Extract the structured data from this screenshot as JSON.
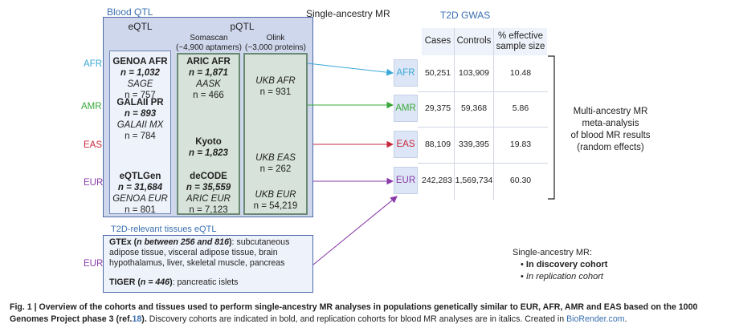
{
  "blood_qtl": {
    "title": "Blood QTL",
    "eqtl_header": "eQTL",
    "pqtl_header": "pQTL",
    "somascan": {
      "name": "Somascan",
      "detail": "(~4,900 aptamers)"
    },
    "olink": {
      "name": "Olink",
      "detail": "(~3,000 proteins)"
    }
  },
  "single_ancestry_label": "Single-ancestry MR",
  "ancestries": {
    "afr": "AFR",
    "amr": "AMR",
    "eas": "EAS",
    "eur": "EUR",
    "eur_tissue": "EUR"
  },
  "eqtl": {
    "afr": {
      "disc_name": "GENOA AFR",
      "disc_n": "n = 1,032",
      "rep_name": "SAGE",
      "rep_n": "n = 757"
    },
    "amr": {
      "disc_name": "GALAII PR",
      "disc_n": "n = 893",
      "rep_name": "GALAII MX",
      "rep_n": "n = 784"
    },
    "eur": {
      "disc_name": "eQTLGen",
      "disc_n": "n = 31,684",
      "rep_name": "GENOA EUR",
      "rep_n": "n = 801"
    }
  },
  "somascan_cohorts": {
    "afr": {
      "disc_name": "ARIC AFR",
      "disc_n": "n = 1,871",
      "rep_name": "AASK",
      "rep_n": "n = 466"
    },
    "eas": {
      "disc_name": "Kyoto",
      "disc_n": "n = 1,823"
    },
    "eur": {
      "disc_name": "deCODE",
      "disc_n": "n = 35,559",
      "rep_name": "ARIC EUR",
      "rep_n": "n = 7,123"
    }
  },
  "olink_cohorts": {
    "afr": {
      "rep_name": "UKB AFR",
      "rep_n": "n = 931"
    },
    "eas": {
      "rep_name": "UKB EAS",
      "rep_n": "n = 262"
    },
    "eur": {
      "rep_name": "UKB EUR",
      "rep_n": "n = 54,219"
    }
  },
  "tissue_eqtl": {
    "title": "T2D-relevant tissues eQTL",
    "gtex_name": "GTEx",
    "gtex_n": "n between 256 and 816",
    "gtex_tissues": "subcutaneous adipose tissue, visceral adipose tissue, brain hypothalamus, liver, skeletal muscle, pancreas",
    "tiger_name": "TIGER",
    "tiger_n": "n = 446",
    "tiger_tissue": "pancreatic islets"
  },
  "t2d_gwas": {
    "title": "T2D GWAS",
    "columns": [
      "Cases",
      "Controls",
      "% effective sample size"
    ],
    "rows": [
      {
        "ancestry": "AFR",
        "cases": "50,251",
        "controls": "103,909",
        "pct": "10.48"
      },
      {
        "ancestry": "AMR",
        "cases": "29,375",
        "controls": "59,368",
        "pct": "5.86"
      },
      {
        "ancestry": "EAS",
        "cases": "88,109",
        "controls": "339,395",
        "pct": "19.83"
      },
      {
        "ancestry": "EUR",
        "cases": "242,283",
        "controls": "1,569,734",
        "pct": "60.30"
      }
    ]
  },
  "meta_analysis": {
    "lines": [
      "Multi-ancestry MR",
      "meta-analysis",
      "of blood MR results",
      "(random effects)"
    ]
  },
  "legend": {
    "title": "Single-ancestry MR:",
    "bold_item": "In discovery cohort",
    "italic_item": "In replication cohort"
  },
  "caption": {
    "label": "Fig. 1 | Overview of the cohorts and tissues used to perform single-ancestry MR analyses in populations genetically similar to EUR, AFR, AMR and EAS based on the 1000 Genomes Project phase 3 (ref.",
    "ref": "18",
    "label_end": ").",
    "text": "Discovery cohorts are indicated in bold, and replication cohorts for blood MR analyses are in italics. Created in",
    "link": "BioRender.com",
    "end": "."
  },
  "colors": {
    "afr": "#3aa8d8",
    "amr": "#3aa83a",
    "eas": "#c8283c",
    "eur": "#8a3aa8",
    "panel_border": "#4d6aa8",
    "accent_blue": "#3a6fb0"
  }
}
